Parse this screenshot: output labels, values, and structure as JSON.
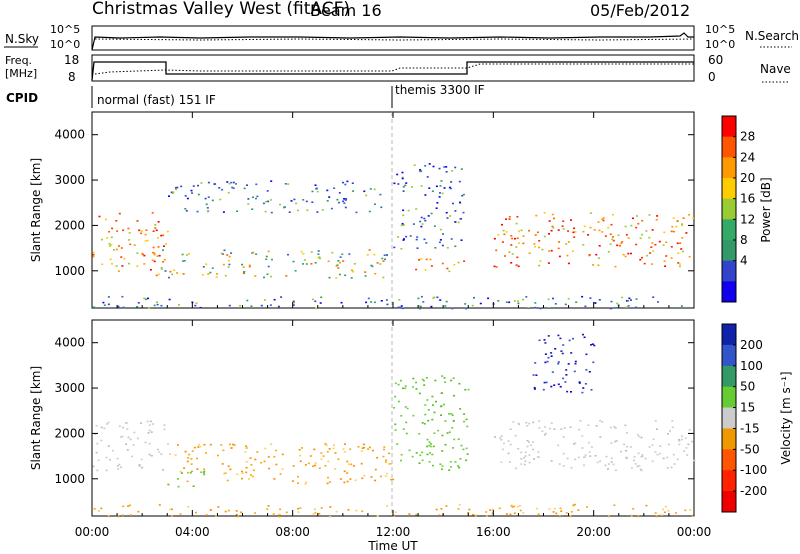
{
  "header": {
    "station": "Christmas Valley West (fitACF)",
    "beam": "Beam 16",
    "date": "05/Feb/2012"
  },
  "strip_labels": {
    "nsky": "N.Sky",
    "nsearch": "N.Search",
    "freq_line1": "Freq.",
    "freq_line2": "[MHz]",
    "nave": "Nave",
    "cpid": "CPID",
    "nsky_ticks": [
      "10^5",
      "10^0"
    ],
    "nsearch_ticks": [
      "10^5",
      "10^0"
    ],
    "freq_ticks": [
      "18",
      "8"
    ],
    "nave_ticks": [
      "60",
      "0"
    ],
    "cpid_modes": [
      "normal (fast) 151 IF",
      "themis 3300 IF"
    ]
  },
  "time_axis": {
    "title": "Time UT",
    "ticks": [
      "00:00",
      "04:00",
      "08:00",
      "12:00",
      "16:00",
      "20:00",
      "00:00"
    ]
  },
  "chart_data": [
    {
      "type": "heatmap",
      "name": "power",
      "ylabel": "Slant Range [km]",
      "xlim": [
        0,
        24
      ],
      "ylim": [
        180,
        4500
      ],
      "yticks": [
        1000,
        2000,
        3000,
        4000
      ],
      "colorbar": {
        "label": "Power [dB]",
        "ticks": [
          "28",
          "24",
          "20",
          "16",
          "12",
          "8",
          "4"
        ],
        "colors": [
          "#ff0000",
          "#ff5500",
          "#ff9900",
          "#ffcc00",
          "#99cc33",
          "#33aa66",
          "#339966",
          "#3344cc",
          "#1100ee"
        ]
      },
      "scatter_regions": [
        {
          "t0": 0.0,
          "t1": 3.0,
          "r0": 1000,
          "r1": 2300,
          "level": "high"
        },
        {
          "t0": 2.5,
          "t1": 11.8,
          "r0": 850,
          "r1": 1500,
          "level": "mid"
        },
        {
          "t0": 12.5,
          "t1": 14.8,
          "r0": 1000,
          "r1": 1300,
          "level": "high"
        },
        {
          "t0": 16.0,
          "t1": 24.0,
          "r0": 1100,
          "r1": 2300,
          "level": "high"
        },
        {
          "t0": 3.0,
          "t1": 11.5,
          "r0": 2300,
          "r1": 3000,
          "level": "low"
        },
        {
          "t0": 12.0,
          "t1": 14.8,
          "r0": 1500,
          "r1": 3400,
          "level": "low"
        },
        {
          "t0": 0.0,
          "t1": 24.0,
          "r0": 180,
          "r1": 450,
          "level": "low"
        }
      ]
    },
    {
      "type": "heatmap",
      "name": "velocity",
      "ylabel": "Slant Range [km]",
      "xlim": [
        0,
        24
      ],
      "ylim": [
        180,
        4500
      ],
      "yticks": [
        1000,
        2000,
        3000,
        4000
      ],
      "colorbar": {
        "label": "Velocity [m s⁻¹]",
        "ticks": [
          "200",
          "100",
          "50",
          "15",
          "-15",
          "-50",
          "-100",
          "-200"
        ],
        "colors": [
          "#1122aa",
          "#3355cc",
          "#339966",
          "#66cc33",
          "#cccccc",
          "#ee9900",
          "#ff5500",
          "#ff2200",
          "#ee0000"
        ]
      },
      "scatter_regions": [
        {
          "t0": 0.0,
          "t1": 3.0,
          "r0": 1200,
          "r1": 2300,
          "level": "gray"
        },
        {
          "t0": 3.0,
          "t1": 12.0,
          "r0": 900,
          "r1": 1800,
          "level": "orange"
        },
        {
          "t0": 3.0,
          "t1": 4.5,
          "r0": 800,
          "r1": 1200,
          "level": "green"
        },
        {
          "t0": 12.0,
          "t1": 15.0,
          "r0": 1200,
          "r1": 3300,
          "level": "green"
        },
        {
          "t0": 16.0,
          "t1": 24.0,
          "r0": 1200,
          "r1": 2300,
          "level": "gray"
        },
        {
          "t0": 17.5,
          "t1": 20.0,
          "r0": 2900,
          "r1": 4200,
          "level": "blue"
        },
        {
          "t0": 0.0,
          "t1": 24.0,
          "r0": 180,
          "r1": 450,
          "level": "orange"
        }
      ]
    }
  ]
}
